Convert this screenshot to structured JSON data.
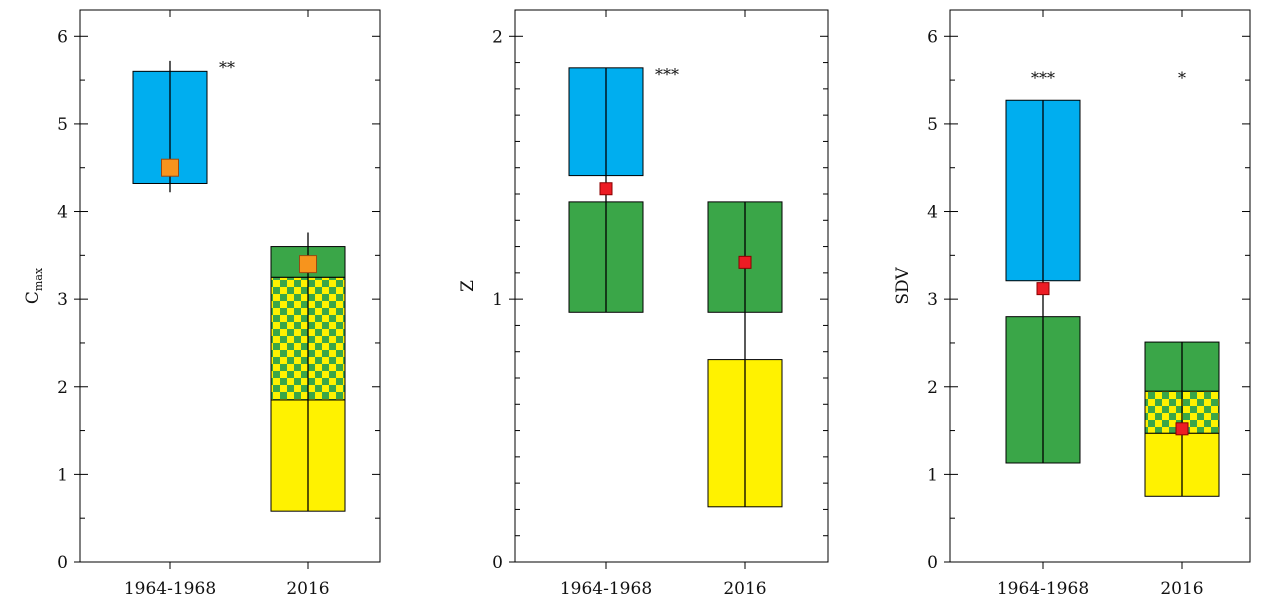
{
  "colors": {
    "blue": "#00aeef",
    "green": "#3aa648",
    "yellow": "#fff200",
    "checker_a": "#3aa648",
    "checker_b": "#fff200",
    "marker_orange": "#f7941d",
    "marker_red": "#ed1c24",
    "axis": "#000000"
  },
  "chart_data": [
    {
      "type": "box",
      "ylabel": "C",
      "ylabel_sub": "max",
      "categories": [
        "1964-1968",
        "2016"
      ],
      "ylim": [
        0,
        6.3
      ],
      "yticks": [
        0,
        1,
        2,
        3,
        4,
        5,
        6
      ],
      "yticks_labels": [
        "0",
        "1",
        "2",
        "3",
        "4",
        "5",
        "6"
      ],
      "minor_step": 0.5,
      "grid": false,
      "boxes": [
        {
          "category": "1964-1968",
          "fill": "blue",
          "low": 4.32,
          "high": 5.6
        },
        {
          "category": "2016",
          "fill": "yellow",
          "low": 0.58,
          "high": 1.85
        },
        {
          "category": "2016",
          "fill": "checker",
          "low": 1.85,
          "high": 3.25
        },
        {
          "category": "2016",
          "fill": "green",
          "low": 3.25,
          "high": 3.6
        }
      ],
      "whiskers": [
        {
          "category": "1964-1968",
          "low": 4.22,
          "high": 5.72
        },
        {
          "category": "2016",
          "low": 0.58,
          "high": 3.76
        }
      ],
      "markers": [
        {
          "category": "1964-1968",
          "value": 4.5,
          "color": "marker_orange",
          "size": "large"
        },
        {
          "category": "2016",
          "value": 3.4,
          "color": "marker_orange",
          "size": "large"
        }
      ],
      "annotations": [
        {
          "text": "**",
          "category": "1964-1968",
          "value": 5.72,
          "align": "right-of"
        }
      ]
    },
    {
      "type": "box",
      "ylabel": "Z",
      "categories": [
        "1964-1968",
        "2016"
      ],
      "ylim": [
        0,
        2.1
      ],
      "yticks": [
        0,
        1,
        2
      ],
      "yticks_labels": [
        "0",
        "1",
        "2"
      ],
      "minor_step": 0.1,
      "grid": false,
      "boxes": [
        {
          "category": "1964-1968",
          "fill": "blue",
          "low": 1.47,
          "high": 1.88
        },
        {
          "category": "1964-1968",
          "fill": "green",
          "low": 0.95,
          "high": 1.37
        },
        {
          "category": "2016",
          "fill": "green",
          "low": 0.95,
          "high": 1.37
        },
        {
          "category": "2016",
          "fill": "yellow",
          "low": 0.21,
          "high": 0.77
        }
      ],
      "whiskers": [
        {
          "category": "1964-1968",
          "low": 0.95,
          "high": 1.88
        },
        {
          "category": "2016",
          "low": 0.21,
          "high": 1.37
        }
      ],
      "markers": [
        {
          "category": "1964-1968",
          "value": 1.42,
          "color": "marker_red",
          "size": "small"
        },
        {
          "category": "2016",
          "value": 1.14,
          "color": "marker_red",
          "size": "small"
        }
      ],
      "annotations": [
        {
          "text": "***",
          "category": "1964-1968",
          "value": 1.88,
          "align": "right-of"
        }
      ]
    },
    {
      "type": "box",
      "ylabel": "SDV",
      "categories": [
        "1964-1968",
        "2016"
      ],
      "ylim": [
        0,
        6.3
      ],
      "yticks": [
        0,
        1,
        2,
        3,
        4,
        5,
        6
      ],
      "yticks_labels": [
        "0",
        "1",
        "2",
        "3",
        "4",
        "5",
        "6"
      ],
      "minor_step": 0.5,
      "grid": false,
      "boxes": [
        {
          "category": "1964-1968",
          "fill": "blue",
          "low": 3.21,
          "high": 5.27
        },
        {
          "category": "1964-1968",
          "fill": "green",
          "low": 1.13,
          "high": 2.8
        },
        {
          "category": "2016",
          "fill": "yellow",
          "low": 0.75,
          "high": 1.47
        },
        {
          "category": "2016",
          "fill": "checker",
          "low": 1.47,
          "high": 1.95
        },
        {
          "category": "2016",
          "fill": "green",
          "low": 1.95,
          "high": 2.51
        }
      ],
      "whiskers": [
        {
          "category": "1964-1968",
          "low": 1.13,
          "high": 5.27
        },
        {
          "category": "2016",
          "low": 0.75,
          "high": 2.51
        }
      ],
      "markers": [
        {
          "category": "1964-1968",
          "value": 3.12,
          "color": "marker_red",
          "size": "small"
        },
        {
          "category": "2016",
          "value": 1.52,
          "color": "marker_red",
          "size": "small"
        }
      ],
      "annotations": [
        {
          "text": "***",
          "category": "1964-1968",
          "value": 5.6,
          "align": "center"
        },
        {
          "text": "*",
          "category": "2016",
          "value": 5.6,
          "align": "center"
        }
      ]
    }
  ]
}
